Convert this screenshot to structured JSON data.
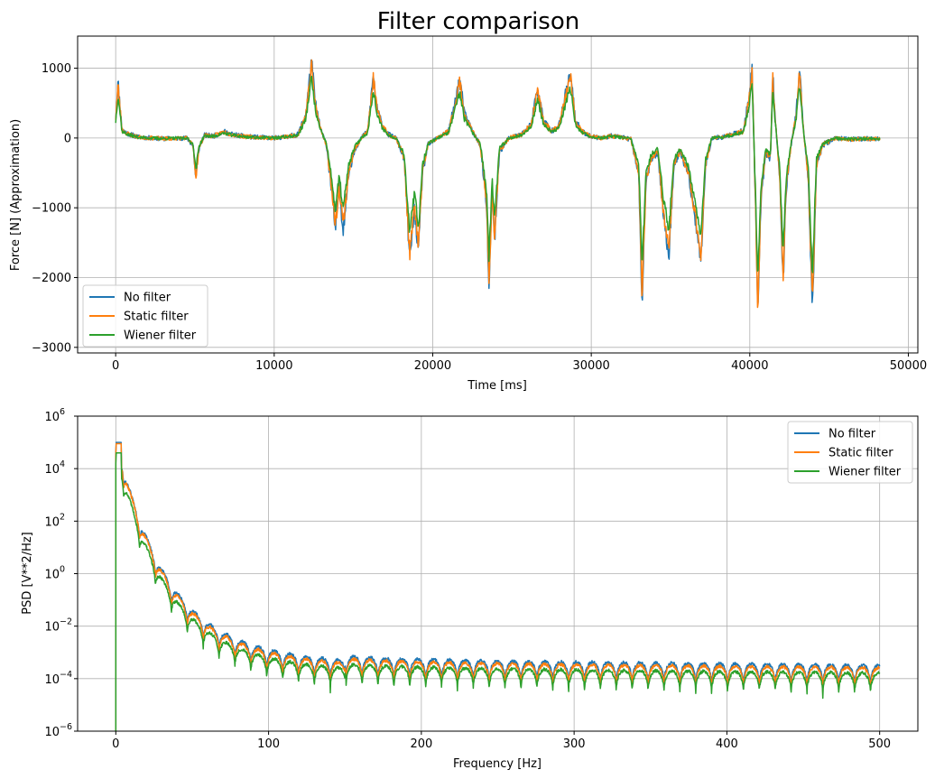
{
  "chart_data": [
    {
      "type": "line",
      "title": "Filter comparison",
      "xlabel": "Time [ms]",
      "ylabel": "Force [N] (Approximation)",
      "xlim": [
        -2400,
        50600
      ],
      "ylim": [
        -3080,
        1460
      ],
      "xticks": [
        0,
        10000,
        20000,
        30000,
        40000,
        50000
      ],
      "xtick_labels": [
        "0",
        "10000",
        "20000",
        "30000",
        "40000",
        "50000"
      ],
      "yticks": [
        -3000,
        -2000,
        -1000,
        0,
        1000
      ],
      "ytick_labels": [
        "−3000",
        "−2000",
        "−1000",
        "0",
        "1000"
      ],
      "grid": true,
      "legend_position": "lower-left",
      "x_range": [
        0,
        48200
      ],
      "segments": [
        [
          0,
          300
        ],
        [
          150,
          800
        ],
        [
          400,
          120
        ],
        [
          800,
          60
        ],
        [
          1500,
          10
        ],
        [
          3000,
          -10
        ],
        [
          4500,
          0
        ],
        [
          4900,
          -120
        ],
        [
          5050,
          -600
        ],
        [
          5250,
          -150
        ],
        [
          5600,
          40
        ],
        [
          6200,
          30
        ],
        [
          6800,
          90
        ],
        [
          7400,
          50
        ],
        [
          8200,
          20
        ],
        [
          9000,
          10
        ],
        [
          10000,
          0
        ],
        [
          10800,
          20
        ],
        [
          11500,
          50
        ],
        [
          12000,
          350
        ],
        [
          12350,
          1100
        ],
        [
          12600,
          500
        ],
        [
          12900,
          150
        ],
        [
          13300,
          -100
        ],
        [
          13700,
          -900
        ],
        [
          13850,
          -1350
        ],
        [
          14100,
          -700
        ],
        [
          14350,
          -1300
        ],
        [
          14700,
          -500
        ],
        [
          15100,
          -150
        ],
        [
          15500,
          0
        ],
        [
          15900,
          100
        ],
        [
          16250,
          900
        ],
        [
          16500,
          400
        ],
        [
          16800,
          200
        ],
        [
          17200,
          50
        ],
        [
          17700,
          0
        ],
        [
          18200,
          -300
        ],
        [
          18550,
          -1750
        ],
        [
          18850,
          -1000
        ],
        [
          19100,
          -1650
        ],
        [
          19350,
          -500
        ],
        [
          19700,
          -100
        ],
        [
          20300,
          0
        ],
        [
          21000,
          100
        ],
        [
          21400,
          500
        ],
        [
          21700,
          850
        ],
        [
          22000,
          350
        ],
        [
          22500,
          100
        ],
        [
          23000,
          -100
        ],
        [
          23400,
          -1000
        ],
        [
          23550,
          -2200
        ],
        [
          23750,
          -800
        ],
        [
          23900,
          -1500
        ],
        [
          24200,
          -200
        ],
        [
          24800,
          0
        ],
        [
          25600,
          50
        ],
        [
          26200,
          200
        ],
        [
          26600,
          700
        ],
        [
          27000,
          250
        ],
        [
          27500,
          100
        ],
        [
          28000,
          200
        ],
        [
          28400,
          650
        ],
        [
          28700,
          900
        ],
        [
          29000,
          250
        ],
        [
          29400,
          100
        ],
        [
          29900,
          30
        ],
        [
          30600,
          0
        ],
        [
          31300,
          30
        ],
        [
          31900,
          10
        ],
        [
          32500,
          -20
        ],
        [
          33000,
          -500
        ],
        [
          33200,
          -2400
        ],
        [
          33450,
          -600
        ],
        [
          33800,
          -300
        ],
        [
          34200,
          -200
        ],
        [
          34600,
          -1200
        ],
        [
          34900,
          -1700
        ],
        [
          35200,
          -400
        ],
        [
          35600,
          -200
        ],
        [
          36100,
          -500
        ],
        [
          36600,
          -1200
        ],
        [
          36900,
          -1800
        ],
        [
          37200,
          -400
        ],
        [
          37600,
          0
        ],
        [
          38200,
          10
        ],
        [
          39000,
          60
        ],
        [
          39600,
          100
        ],
        [
          39950,
          600
        ],
        [
          40150,
          1000
        ],
        [
          40350,
          -900
        ],
        [
          40500,
          -2600
        ],
        [
          40700,
          -900
        ],
        [
          41000,
          -200
        ],
        [
          41300,
          -300
        ],
        [
          41450,
          900
        ],
        [
          41600,
          300
        ],
        [
          41900,
          -600
        ],
        [
          42100,
          -2100
        ],
        [
          42300,
          -700
        ],
        [
          42600,
          -100
        ],
        [
          42900,
          300
        ],
        [
          43150,
          1000
        ],
        [
          43350,
          200
        ],
        [
          43700,
          -600
        ],
        [
          43950,
          -2500
        ],
        [
          44200,
          -400
        ],
        [
          44600,
          -100
        ],
        [
          45400,
          0
        ],
        [
          46200,
          -20
        ],
        [
          47200,
          -10
        ],
        [
          48200,
          -10
        ]
      ],
      "series": [
        {
          "name": "No filter",
          "color": "#1f77b4",
          "gain": 1.0,
          "jitter": 90,
          "seed": 11
        },
        {
          "name": "Static filter",
          "color": "#ff7f0e",
          "gain": 0.95,
          "jitter": 80,
          "seed": 23
        },
        {
          "name": "Wiener filter",
          "color": "#2ca02c",
          "gain": 0.78,
          "jitter": 60,
          "seed": 37
        }
      ]
    },
    {
      "type": "line",
      "xlabel": "Frequency [Hz]",
      "ylabel": "PSD [V**2/Hz]",
      "xlim": [
        -25,
        525
      ],
      "ylim_log10": [
        -6,
        6
      ],
      "yscale": "log",
      "xticks": [
        0,
        100,
        200,
        300,
        400,
        500
      ],
      "xtick_labels": [
        "0",
        "100",
        "200",
        "300",
        "400",
        "500"
      ],
      "yticks_log10": [
        -6,
        -4,
        -2,
        0,
        2,
        4,
        6
      ],
      "ytick_bases": [
        "10",
        "10",
        "10",
        "10",
        "10",
        "10",
        "10"
      ],
      "ytick_exponents": [
        "−6",
        "−4",
        "−2",
        "0",
        "2",
        "4",
        "6"
      ],
      "grid": true,
      "legend_position": "upper-right",
      "x_range": [
        0,
        500
      ],
      "ripple_period_hz": 10.4,
      "series": [
        {
          "name": "No filter",
          "color": "#1f77b4",
          "peak_log10": 5.0,
          "floor_log10": -3.4
        },
        {
          "name": "Static filter",
          "color": "#ff7f0e",
          "peak_log10": 4.95,
          "floor_log10": -3.5
        },
        {
          "name": "Wiener filter",
          "color": "#2ca02c",
          "peak_log10": 4.6,
          "floor_log10": -3.7
        }
      ]
    }
  ]
}
